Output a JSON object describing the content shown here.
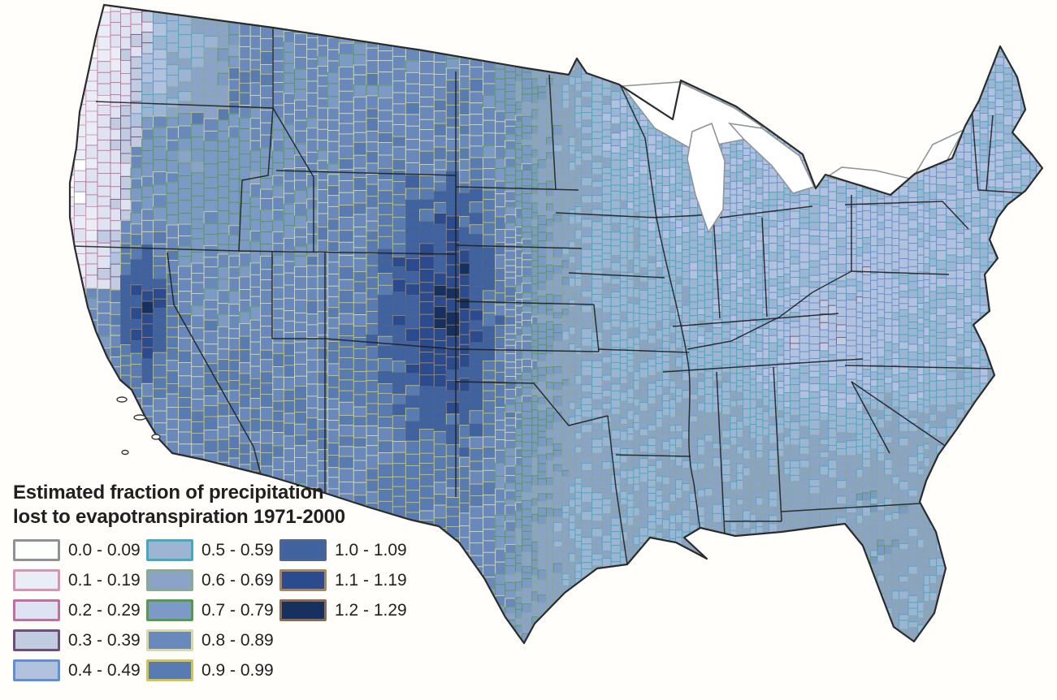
{
  "figure": {
    "background": "#fffefa"
  },
  "legend": {
    "title_line1": "Estimated fraction of precipitation",
    "title_line2": "lost to evapotranspiration 1971-2000",
    "classes": [
      {
        "label": "0.0 - 0.09",
        "fill": "#fdfffd",
        "border": "#8f9294"
      },
      {
        "label": "0.1 - 0.19",
        "fill": "#e9edf6",
        "border": "#d694b1"
      },
      {
        "label": "0.2 - 0.29",
        "fill": "#dde3f0",
        "border": "#c06fa0"
      },
      {
        "label": "0.3 - 0.39",
        "fill": "#c2cce1",
        "border": "#6f4e7d"
      },
      {
        "label": "0.4 - 0.49",
        "fill": "#b2c1dc",
        "border": "#5e90d2"
      },
      {
        "label": "0.5 - 0.59",
        "fill": "#9db4d3",
        "border": "#43aabf"
      },
      {
        "label": "0.6 - 0.69",
        "fill": "#8ba3c6",
        "border": "#8aab91"
      },
      {
        "label": "0.7 - 0.79",
        "fill": "#7d9ac6",
        "border": "#569950"
      },
      {
        "label": "0.8 - 0.89",
        "fill": "#6a89bb",
        "border": "#d9d9a6"
      },
      {
        "label": "0.9 - 0.99",
        "fill": "#587bb1",
        "border": "#d2c453"
      },
      {
        "label": "1.0 - 1.09",
        "fill": "#40629e",
        "border": "#50658f"
      },
      {
        "label": "1.1 - 1.19",
        "fill": "#2a4b8d",
        "border": "#a8855f"
      },
      {
        "label": "1.2 - 1.29",
        "fill": "#16305f",
        "border": "#8a6b50"
      }
    ]
  },
  "map": {
    "ocean": "#fffefa",
    "outline_color": "#2b2b2b",
    "state_border_color": "#1c1c1c",
    "lake_fill": "#ffffff",
    "lake_border": "#8f9496"
  }
}
